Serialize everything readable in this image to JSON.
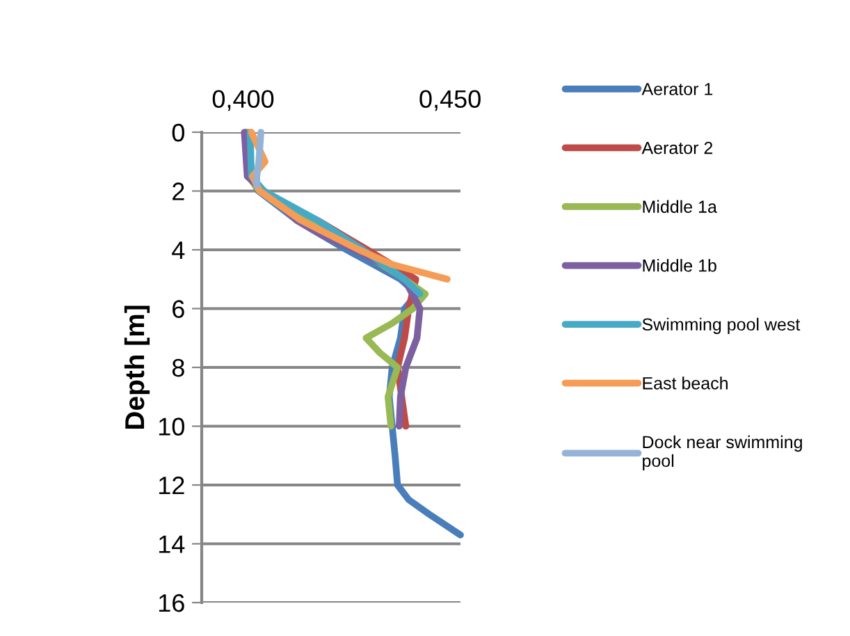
{
  "chart_data": {
    "type": "line",
    "ylabel": "Depth [m]",
    "xlim": [
      0.39,
      0.4525
    ],
    "xticks": [
      {
        "value": 0.4,
        "label": "0,400"
      },
      {
        "value": 0.45,
        "label": "0,450"
      }
    ],
    "ylim": [
      16,
      0
    ],
    "yticks": [
      0,
      2,
      4,
      6,
      8,
      10,
      12,
      14,
      16
    ],
    "grid": "y",
    "legend": "right",
    "marker": "none",
    "line_style": "solid",
    "series": [
      {
        "name": "Aerator 1",
        "color": "#4a7ebb",
        "x": [
          0.4007,
          0.4017,
          0.4037,
          0.413,
          0.425,
          0.438,
          0.442,
          0.439,
          0.438,
          0.436,
          0.4353,
          0.436,
          0.4367,
          0.4373,
          0.44,
          0.445,
          0.4525
        ],
        "values": [
          0,
          1.5,
          2,
          3,
          4,
          5,
          5.5,
          6,
          7,
          8,
          9,
          10,
          11,
          12,
          12.5,
          13,
          13.7
        ]
      },
      {
        "name": "Aerator 2",
        "color": "#be4b48",
        "x": [
          0.401,
          0.4013,
          0.404,
          0.418,
          0.43,
          0.4417,
          0.44,
          0.439,
          0.4373,
          0.4383,
          0.4393
        ],
        "values": [
          0,
          1.5,
          2,
          3,
          4,
          5,
          6,
          7,
          8,
          9,
          10
        ]
      },
      {
        "name": "Middle 1a",
        "color": "#98b954",
        "x": [
          0.401,
          0.4013,
          0.404,
          0.415,
          0.428,
          0.439,
          0.444,
          0.441,
          0.436,
          0.4297,
          0.433,
          0.4373,
          0.435,
          0.4357
        ],
        "values": [
          0,
          1.5,
          2,
          3,
          4,
          5,
          5.5,
          6,
          6.5,
          7,
          7.5,
          8,
          9,
          10
        ]
      },
      {
        "name": "Middle 1b",
        "color": "#7d60a0",
        "x": [
          0.4003,
          0.401,
          0.405,
          0.413,
          0.419,
          0.427,
          0.434,
          0.439,
          0.4427,
          0.442,
          0.4393,
          0.438,
          0.4377
        ],
        "values": [
          0,
          1.5,
          2,
          3,
          3.5,
          4,
          4.5,
          5,
          6,
          7,
          8,
          9,
          10
        ]
      },
      {
        "name": "Swimming pool west",
        "color": "#46aac5",
        "x": [
          0.4017,
          0.402,
          0.405,
          0.418,
          0.429,
          0.439,
          0.4427
        ],
        "values": [
          0,
          1.5,
          2,
          3,
          4,
          5,
          5.5
        ]
      },
      {
        "name": "East beach",
        "color": "#f59d56",
        "x": [
          0.402,
          0.4053,
          0.4023,
          0.404,
          0.414,
          0.428,
          0.436,
          0.4493
        ],
        "values": [
          0,
          1,
          1.5,
          2,
          3,
          4,
          4.5,
          5
        ]
      },
      {
        "name": "Dock near swimming\npool",
        "color": "#95b3d7",
        "x": [
          0.4043,
          0.4038,
          0.4033,
          0.4033
        ],
        "values": [
          0,
          1,
          1.5,
          1.8
        ]
      }
    ]
  }
}
